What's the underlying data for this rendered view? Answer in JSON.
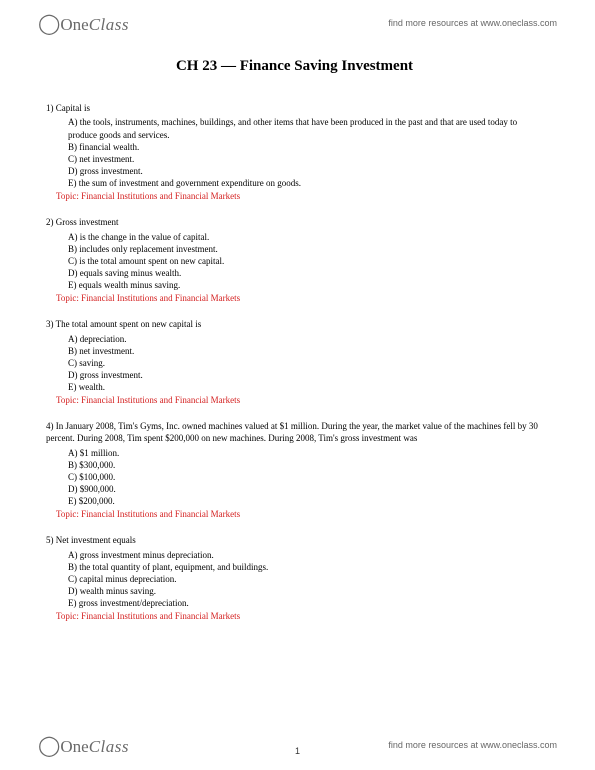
{
  "brand": {
    "logo_text_one": "One",
    "logo_text_class": "Class",
    "resource_text": "find more resources at www.oneclass.com"
  },
  "page_number": "1",
  "title": "CH 23 — Finance Saving Investment",
  "topic_label": "Topic: Financial Institutions and Financial Markets",
  "questions": [
    {
      "num": "1)",
      "stem": "Capital is",
      "opts": [
        "A) the tools, instruments, machines, buildings, and other items that have been produced in the past and that are used today to produce goods and services.",
        "B) financial wealth.",
        "C) net investment.",
        "D) gross investment.",
        "E) the sum of investment and government expenditure on goods."
      ]
    },
    {
      "num": "2)",
      "stem": "Gross investment",
      "opts": [
        "A) is the change in the value of capital.",
        "B) includes only replacement investment.",
        "C) is the total amount spent on new capital.",
        "D) equals saving minus wealth.",
        "E) equals wealth minus saving."
      ]
    },
    {
      "num": "3)",
      "stem": "The total amount spent on new capital is",
      "opts": [
        "A) depreciation.",
        "B) net investment.",
        "C) saving.",
        "D) gross investment.",
        "E) wealth."
      ]
    },
    {
      "num": "4)",
      "stem": "In January 2008, Tim's Gyms, Inc. owned machines valued at $1 million. During the year, the market value of the machines fell by 30 percent. During 2008, Tim spent $200,000 on new machines. During 2008, Tim's gross investment was",
      "opts": [
        "A) $1 million.",
        "B) $300,000.",
        "C) $100,000.",
        "D) $900,000.",
        "E) $200,000."
      ]
    },
    {
      "num": "5)",
      "stem": "Net investment equals",
      "opts": [
        "A) gross investment minus depreciation.",
        "B) the total quantity of plant, equipment, and buildings.",
        "C) capital minus depreciation.",
        "D) wealth minus saving.",
        "E) gross investment/depreciation."
      ]
    }
  ]
}
